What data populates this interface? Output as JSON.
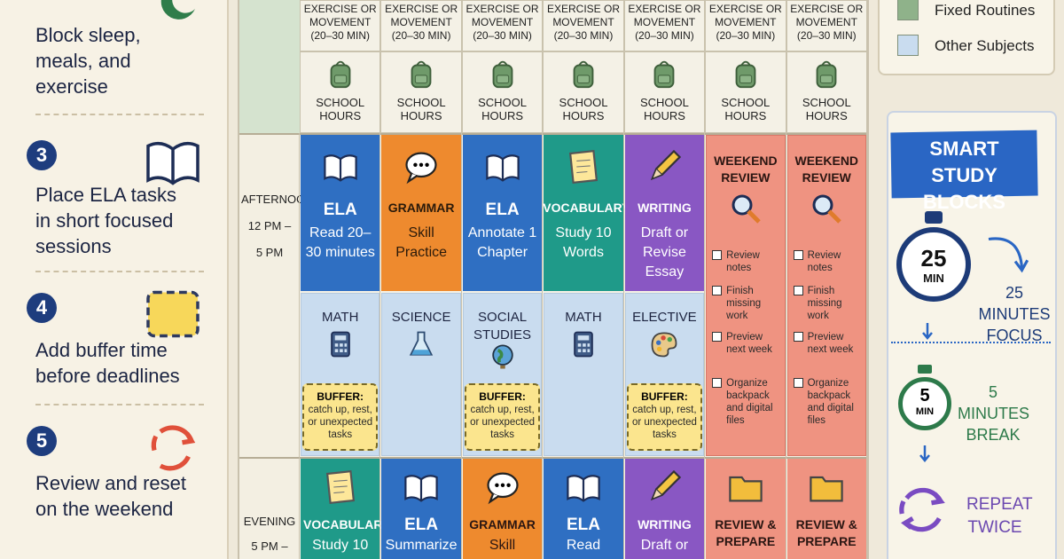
{
  "steps": [
    {
      "text": "Block sleep, meals, and exercise"
    },
    {
      "number": "3",
      "text": "Place ELA tasks in short focused sessions"
    },
    {
      "number": "4",
      "text": "Add buffer time before deadlines"
    },
    {
      "number": "5",
      "text": "Review and reset on the weekend"
    }
  ],
  "legend": [
    "Fixed Routines",
    "Other Subjects"
  ],
  "schedule": {
    "morning_rows": [
      {
        "cells": [
          "EXERCISE OR MOVEMENT (20–30 MIN)",
          "EXERCISE OR MOVEMENT (20–30 MIN)",
          "EXERCISE OR MOVEMENT (20–30 MIN)",
          "EXERCISE OR MOVEMENT (20–30 MIN)",
          "EXERCISE OR MOVEMENT (20–30 MIN)",
          "EXERCISE OR MOVEMENT (20–30 MIN)",
          "EXERCISE OR MOVEMENT (20–30 MIN)"
        ]
      },
      {
        "cells": [
          "SCHOOL HOURS",
          "SCHOOL HOURS",
          "SCHOOL HOURS",
          "SCHOOL HOURS",
          "SCHOOL HOURS",
          "SCHOOL HOURS",
          "SCHOOL HOURS"
        ]
      }
    ],
    "afternoon": {
      "label": [
        "AFTERNOON",
        "12 PM –",
        "5 PM"
      ],
      "blocks": [
        {
          "title": "ELA",
          "text": "Read 20–30 minutes"
        },
        {
          "title": "GRAMMAR",
          "text": "Skill Practice"
        },
        {
          "title": "ELA",
          "text": "Annotate 1 Chapter"
        },
        {
          "title": "VOCABULARY",
          "text": "Study 10 Words"
        },
        {
          "title": "WRITING",
          "text": "Draft or Revise Essay"
        }
      ],
      "subjects": [
        "MATH",
        "SCIENCE",
        "SOCIAL STUDIES",
        "MATH",
        "ELECTIVE"
      ],
      "buffers": [
        {
          "title": "BUFFER:",
          "text": "catch up, rest, or unexpected tasks"
        },
        {
          "title": "BUFFER:",
          "text": "catch up, rest, or unexpected tasks"
        },
        {
          "title": "BUFFER:",
          "text": "catch up, rest, or unexpected tasks"
        }
      ],
      "weekend": [
        {
          "title": "WEEKEND REVIEW",
          "checklist": [
            "Review notes",
            "Finish missing work",
            "Preview next week",
            "Organize backpack and digital files"
          ]
        },
        {
          "title": "WEEKEND REVIEW",
          "checklist": [
            "Review notes",
            "Finish missing work",
            "Preview next week",
            "Organize backpack and digital files"
          ]
        }
      ]
    },
    "evening": {
      "label": [
        "EVENING",
        "5 PM –"
      ],
      "blocks": [
        {
          "title": "VOCABULARY",
          "text": "Study 10"
        },
        {
          "title": "ELA",
          "text": "Summarize"
        },
        {
          "title": "GRAMMAR",
          "text": "Skill"
        },
        {
          "title": "ELA",
          "text": "Read"
        },
        {
          "title": "WRITING",
          "text": "Draft or"
        },
        {
          "title": "REVIEW & PREPARE"
        },
        {
          "title": "REVIEW & PREPARE"
        }
      ]
    }
  },
  "smart_study": {
    "title": "SMART STUDY BLOCKS",
    "focus_timer": [
      "25",
      "MIN"
    ],
    "focus_text": "25 MINUTES FOCUS",
    "break_timer": [
      "5",
      "MIN"
    ],
    "break_text": "5 MINUTES BREAK",
    "repeat_text": "REPEAT TWICE"
  }
}
